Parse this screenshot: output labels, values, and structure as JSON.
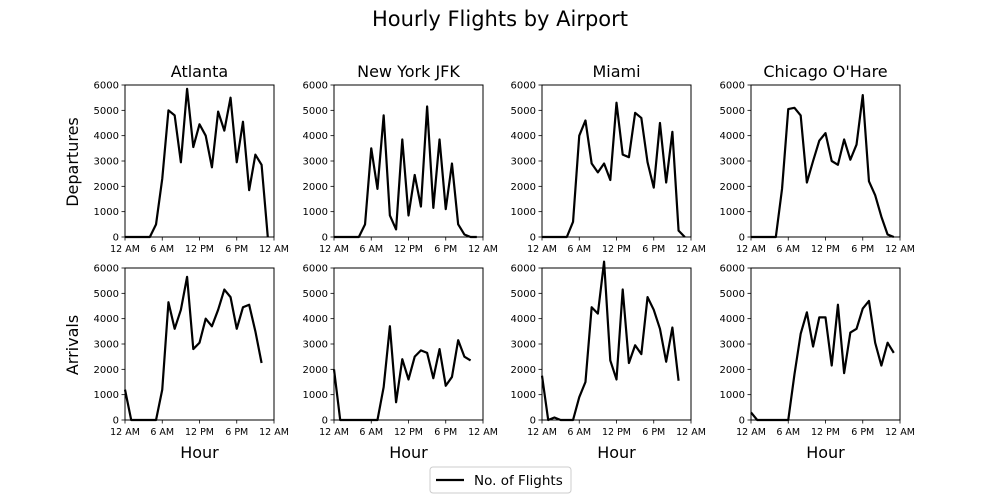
{
  "chart_data": {
    "type": "line",
    "title": "Hourly Flights by Airport",
    "x": [
      0,
      1,
      2,
      3,
      4,
      5,
      6,
      7,
      8,
      9,
      10,
      11,
      12,
      13,
      14,
      15,
      16,
      17,
      18,
      19,
      20,
      21,
      22,
      23
    ],
    "x_tick_labels": [
      "12 AM",
      "6 AM",
      "12 PM",
      "6 PM",
      "12 AM"
    ],
    "y_ticks": [
      0,
      1000,
      2000,
      3000,
      4000,
      5000,
      6000
    ],
    "ylim": [
      0,
      6000
    ],
    "xlabel": "Hour",
    "row_labels": [
      "Departures",
      "Arrivals"
    ],
    "columns": [
      "Atlanta",
      "New York JFK",
      "Miami",
      "Chicago O'Hare"
    ],
    "legend": {
      "label": "No. of Flights",
      "position": "bottom-center"
    },
    "line_color": "#000000",
    "grid": false,
    "panels": [
      {
        "row": "Departures",
        "airport": "Atlanta",
        "values": [
          0,
          0,
          0,
          0,
          0,
          500,
          2300,
          5000,
          4800,
          2950,
          5850,
          3550,
          4450,
          4000,
          2750,
          4950,
          4200,
          5500,
          2950,
          4550,
          1850,
          3250,
          2850,
          0
        ]
      },
      {
        "row": "Departures",
        "airport": "New York JFK",
        "values": [
          0,
          0,
          0,
          0,
          0,
          500,
          3500,
          1900,
          4800,
          850,
          300,
          3850,
          850,
          2450,
          1200,
          5150,
          1150,
          3850,
          1100,
          2900,
          500,
          100,
          0,
          0
        ]
      },
      {
        "row": "Departures",
        "airport": "Miami",
        "values": [
          0,
          0,
          0,
          0,
          0,
          600,
          4000,
          4600,
          2900,
          2550,
          2900,
          2250,
          5300,
          3250,
          3150,
          4900,
          4700,
          2950,
          1950,
          4500,
          2150,
          4150,
          250,
          0
        ]
      },
      {
        "row": "Departures",
        "airport": "Chicago O'Hare",
        "values": [
          0,
          0,
          0,
          0,
          0,
          1900,
          5050,
          5100,
          4800,
          2150,
          3000,
          3800,
          4100,
          3000,
          2850,
          3850,
          3050,
          3650,
          5600,
          2200,
          1650,
          800,
          100,
          0
        ]
      },
      {
        "row": "Arrivals",
        "airport": "Atlanta",
        "values": [
          1200,
          0,
          0,
          0,
          0,
          0,
          1200,
          4650,
          3600,
          4350,
          5650,
          2800,
          3050,
          4000,
          3700,
          4350,
          5150,
          4850,
          3600,
          4450,
          4550,
          3500,
          2250,
          null
        ]
      },
      {
        "row": "Arrivals",
        "airport": "New York JFK",
        "values": [
          2000,
          0,
          0,
          0,
          0,
          0,
          0,
          0,
          1300,
          3700,
          700,
          2400,
          1600,
          2500,
          2750,
          2650,
          1650,
          2800,
          1350,
          1700,
          3150,
          2500,
          2350,
          null
        ]
      },
      {
        "row": "Arrivals",
        "airport": "Miami",
        "values": [
          1750,
          0,
          100,
          0,
          0,
          0,
          900,
          1500,
          4450,
          4200,
          6250,
          2350,
          1600,
          5150,
          2250,
          2950,
          2600,
          4850,
          4350,
          3600,
          2300,
          3650,
          1550,
          null
        ]
      },
      {
        "row": "Arrivals",
        "airport": "Chicago O'Hare",
        "values": [
          300,
          0,
          0,
          0,
          0,
          0,
          0,
          1800,
          3400,
          4250,
          2900,
          4050,
          4050,
          2150,
          4550,
          1850,
          3450,
          3600,
          4400,
          4700,
          3050,
          2150,
          3050,
          2650
        ]
      }
    ]
  }
}
